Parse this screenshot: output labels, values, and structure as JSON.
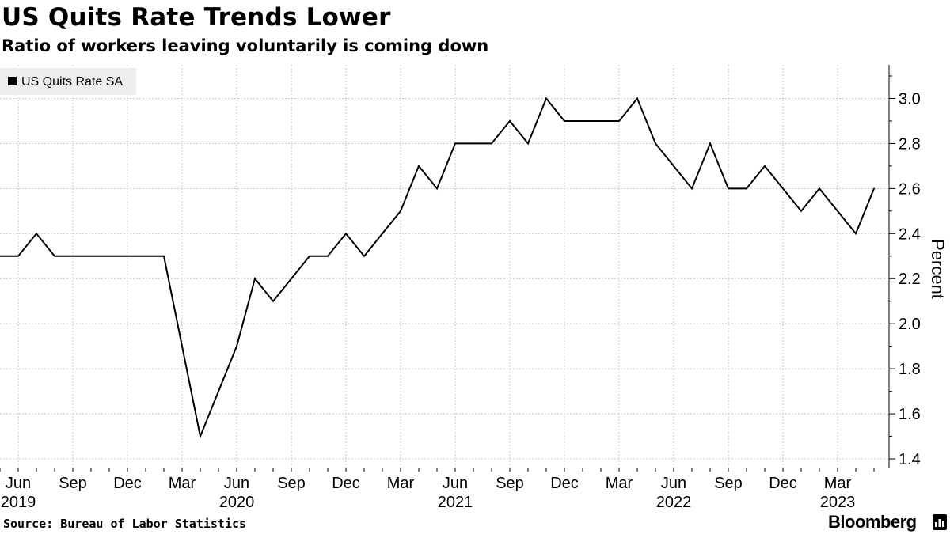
{
  "title": "US Quits Rate Trends Lower",
  "subtitle": "Ratio of workers leaving voluntarily is coming down",
  "source": "Source: Bureau of Labor Statistics",
  "brand": "Bloomberg",
  "brand_icon": "bloomberg-terminal-icon",
  "chart_data": {
    "type": "line",
    "ylabel": "Percent",
    "ylim": [
      1.4,
      3.15
    ],
    "yticks": [
      1.4,
      1.6,
      1.8,
      2.0,
      2.2,
      2.4,
      2.6,
      2.8,
      3.0
    ],
    "ytick_labels": [
      "1.4",
      "1.6",
      "1.8",
      "2.0",
      "2.2",
      "2.4",
      "2.6",
      "2.8",
      "3.0"
    ],
    "x_axis": {
      "month_labels": [
        {
          "date": "2019-06",
          "label": "Jun"
        },
        {
          "date": "2019-09",
          "label": "Sep"
        },
        {
          "date": "2019-12",
          "label": "Dec"
        },
        {
          "date": "2020-03",
          "label": "Mar"
        },
        {
          "date": "2020-06",
          "label": "Jun"
        },
        {
          "date": "2020-09",
          "label": "Sep"
        },
        {
          "date": "2020-12",
          "label": "Dec"
        },
        {
          "date": "2021-03",
          "label": "Mar"
        },
        {
          "date": "2021-06",
          "label": "Jun"
        },
        {
          "date": "2021-09",
          "label": "Sep"
        },
        {
          "date": "2021-12",
          "label": "Dec"
        },
        {
          "date": "2022-03",
          "label": "Mar"
        },
        {
          "date": "2022-06",
          "label": "Jun"
        },
        {
          "date": "2022-09",
          "label": "Sep"
        },
        {
          "date": "2022-12",
          "label": "Dec"
        },
        {
          "date": "2023-03",
          "label": "Mar"
        }
      ],
      "year_labels": [
        {
          "date": "2019-06",
          "label": "2019"
        },
        {
          "date": "2020-06",
          "label": "2020"
        },
        {
          "date": "2021-06",
          "label": "2021"
        },
        {
          "date": "2022-06",
          "label": "2022"
        },
        {
          "date": "2023-03",
          "label": "2023"
        }
      ]
    },
    "grid": true,
    "legend_position": "top-left",
    "series": [
      {
        "name": "US Quits Rate SA",
        "color": "#000000",
        "x": [
          "2019-05",
          "2019-06",
          "2019-07",
          "2019-08",
          "2019-09",
          "2019-10",
          "2019-11",
          "2019-12",
          "2020-01",
          "2020-02",
          "2020-03",
          "2020-04",
          "2020-05",
          "2020-06",
          "2020-07",
          "2020-08",
          "2020-09",
          "2020-10",
          "2020-11",
          "2020-12",
          "2021-01",
          "2021-02",
          "2021-03",
          "2021-04",
          "2021-05",
          "2021-06",
          "2021-07",
          "2021-08",
          "2021-09",
          "2021-10",
          "2021-11",
          "2021-12",
          "2022-01",
          "2022-02",
          "2022-03",
          "2022-04",
          "2022-05",
          "2022-06",
          "2022-07",
          "2022-08",
          "2022-09",
          "2022-10",
          "2022-11",
          "2022-12",
          "2023-01",
          "2023-02",
          "2023-03",
          "2023-04",
          "2023-05"
        ],
        "values": [
          2.3,
          2.3,
          2.4,
          2.3,
          2.3,
          2.3,
          2.3,
          2.3,
          2.3,
          2.3,
          1.9,
          1.5,
          1.7,
          1.9,
          2.2,
          2.1,
          2.2,
          2.3,
          2.3,
          2.4,
          2.3,
          2.4,
          2.5,
          2.7,
          2.6,
          2.8,
          2.8,
          2.8,
          2.9,
          2.8,
          3.0,
          2.9,
          2.9,
          2.9,
          2.9,
          3.0,
          2.8,
          2.7,
          2.6,
          2.8,
          2.6,
          2.6,
          2.7,
          2.6,
          2.5,
          2.6,
          2.5,
          2.4,
          2.6
        ]
      }
    ]
  }
}
